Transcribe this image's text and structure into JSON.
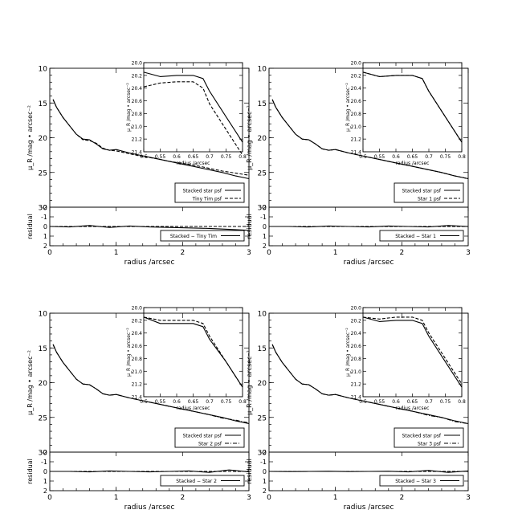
{
  "chart_data": [
    {
      "type": "line",
      "panel": "top-left",
      "ylabel": "μ_R /mag • arcsec⁻²",
      "xlabel": "radius /arcsec",
      "xlim": [
        0,
        3
      ],
      "ylim": [
        30,
        10
      ],
      "xticks": [
        "0",
        "1",
        "2",
        "3"
      ],
      "yticks": [
        "10",
        "15",
        "20",
        "25",
        "30"
      ],
      "legend": {
        "placement": "bottom-right",
        "entries": [
          "Stacked star psf",
          "Tiny Tim psf"
        ]
      },
      "series": [
        {
          "name": "Stacked star psf",
          "style": "solid",
          "x": [
            0.05,
            0.1,
            0.2,
            0.3,
            0.4,
            0.5,
            0.6,
            0.7,
            0.8,
            0.9,
            1.0,
            1.2,
            1.4,
            1.6,
            1.8,
            2.0,
            2.2,
            2.4,
            2.6,
            2.8,
            3.0
          ],
          "y": [
            14.5,
            15.6,
            17.1,
            18.3,
            19.5,
            20.2,
            20.3,
            20.9,
            21.6,
            21.8,
            21.7,
            22.2,
            22.6,
            23.0,
            23.4,
            23.8,
            24.2,
            24.6,
            25.0,
            25.5,
            25.9
          ]
        },
        {
          "name": "Tiny Tim psf",
          "style": "dashed",
          "x": [
            0.05,
            0.1,
            0.2,
            0.3,
            0.4,
            0.5,
            0.6,
            0.7,
            0.8,
            0.9,
            1.0,
            1.2,
            1.4,
            1.6,
            1.8,
            2.0,
            2.2,
            2.4,
            2.6,
            2.8,
            3.0
          ],
          "y": [
            14.5,
            15.6,
            17.1,
            18.3,
            19.5,
            20.3,
            20.4,
            20.8,
            21.5,
            21.8,
            21.9,
            22.3,
            22.7,
            23.0,
            23.4,
            23.7,
            24.0,
            24.4,
            24.8,
            25.1,
            25.4
          ]
        }
      ],
      "residual": {
        "ylabel": "residual",
        "ylim": [
          2,
          -2
        ],
        "yticks": [
          "-2",
          "-1",
          "0",
          "1",
          "2"
        ],
        "legend": "Stacked − Tiny Tim",
        "x": [
          0,
          0.3,
          0.6,
          0.9,
          1.2,
          1.5,
          1.8,
          2.1,
          2.4,
          2.7,
          3.0
        ],
        "y": [
          0,
          0.05,
          -0.1,
          0.1,
          -0.05,
          0.05,
          0.1,
          0.15,
          0.2,
          0.3,
          0.4
        ]
      },
      "inset": {
        "ylabel": "μ_R /mag • arcsec⁻²",
        "xlabel": "radius /arcsec",
        "xlim": [
          0.5,
          0.8
        ],
        "ylim": [
          21.4,
          20.0
        ],
        "xticks": [
          "0.5",
          "0.55",
          "0.6",
          "0.65",
          "0.7",
          "0.75",
          "0.8"
        ],
        "yticks": [
          "20.0",
          "20.2",
          "20.4",
          "20.6",
          "20.8",
          "21.0",
          "21.2",
          "21.4"
        ],
        "series": [
          {
            "style": "solid",
            "x": [
              0.5,
              0.55,
              0.6,
              0.65,
              0.68,
              0.7,
              0.75,
              0.8
            ],
            "y": [
              20.15,
              20.22,
              20.2,
              20.2,
              20.25,
              20.45,
              20.85,
              21.25
            ]
          },
          {
            "style": "dashed",
            "x": [
              0.5,
              0.55,
              0.6,
              0.65,
              0.68,
              0.7,
              0.75,
              0.8
            ],
            "y": [
              20.38,
              20.32,
              20.3,
              20.3,
              20.4,
              20.65,
              21.05,
              21.45
            ]
          }
        ]
      }
    },
    {
      "type": "line",
      "panel": "top-right",
      "ylabel": "μ_R /mag • arcsec⁻²",
      "xlabel": "radius /arcsec",
      "xlim": [
        0,
        3
      ],
      "ylim": [
        30,
        10
      ],
      "xticks": [
        "0",
        "1",
        "2",
        "3"
      ],
      "yticks": [
        "10",
        "15",
        "20",
        "25",
        "30"
      ],
      "legend": {
        "placement": "bottom-right",
        "entries": [
          "Stacked star psf",
          "Star 1 psf"
        ]
      },
      "series": [
        {
          "name": "Stacked star psf",
          "style": "solid",
          "x": [
            0.05,
            0.1,
            0.2,
            0.3,
            0.4,
            0.5,
            0.6,
            0.7,
            0.8,
            0.9,
            1.0,
            1.2,
            1.4,
            1.6,
            1.8,
            2.0,
            2.2,
            2.4,
            2.6,
            2.8,
            3.0
          ],
          "y": [
            14.5,
            15.6,
            17.1,
            18.3,
            19.5,
            20.2,
            20.3,
            20.9,
            21.6,
            21.8,
            21.7,
            22.2,
            22.6,
            23.0,
            23.4,
            23.8,
            24.2,
            24.6,
            25.0,
            25.5,
            25.9
          ]
        },
        {
          "name": "Star 1 psf",
          "style": "dashed",
          "x": [
            0.05,
            0.1,
            0.2,
            0.3,
            0.4,
            0.5,
            0.6,
            0.7,
            0.8,
            0.9,
            1.0,
            1.2,
            1.4,
            1.6,
            1.8,
            2.0,
            2.2,
            2.4,
            2.6,
            2.8,
            3.0
          ],
          "y": [
            14.5,
            15.6,
            17.1,
            18.3,
            19.5,
            20.2,
            20.3,
            20.9,
            21.6,
            21.8,
            21.7,
            22.2,
            22.6,
            23.0,
            23.4,
            23.8,
            24.2,
            24.6,
            25.0,
            25.5,
            25.9
          ]
        }
      ],
      "residual": {
        "ylabel": "residual",
        "ylim": [
          2,
          -2
        ],
        "yticks": [
          "-2",
          "-1",
          "0",
          "1",
          "2"
        ],
        "legend": "Stacked − Star 1",
        "x": [
          0,
          0.3,
          0.6,
          0.9,
          1.2,
          1.5,
          1.8,
          2.1,
          2.4,
          2.7,
          3.0
        ],
        "y": [
          0,
          0,
          0.05,
          -0.05,
          0,
          0.05,
          -0.05,
          0,
          0.05,
          -0.1,
          0
        ]
      },
      "inset": {
        "ylabel": "μ_R /mag • arcsec⁻²",
        "xlabel": "radius /arcsec",
        "xlim": [
          0.5,
          0.8
        ],
        "ylim": [
          21.4,
          20.0
        ],
        "xticks": [
          "0.5",
          "0.55",
          "0.6",
          "0.65",
          "0.7",
          "0.75",
          "0.8"
        ],
        "yticks": [
          "20.0",
          "20.2",
          "20.4",
          "20.6",
          "20.8",
          "21.0",
          "21.2",
          "21.4"
        ],
        "series": [
          {
            "style": "solid",
            "x": [
              0.5,
              0.55,
              0.6,
              0.65,
              0.68,
              0.7,
              0.75,
              0.8
            ],
            "y": [
              20.15,
              20.22,
              20.2,
              20.2,
              20.25,
              20.45,
              20.85,
              21.25
            ]
          },
          {
            "style": "dashed",
            "x": [
              0.5,
              0.55,
              0.6,
              0.65,
              0.68,
              0.7,
              0.75,
              0.8
            ],
            "y": [
              20.15,
              20.22,
              20.2,
              20.2,
              20.25,
              20.45,
              20.85,
              21.25
            ]
          }
        ]
      }
    },
    {
      "type": "line",
      "panel": "bottom-left",
      "ylabel": "μ_R /mag • arcsec⁻²",
      "xlabel": "radius /arcsec",
      "xlim": [
        0,
        3
      ],
      "ylim": [
        30,
        10
      ],
      "xticks": [
        "0",
        "1",
        "2",
        "3"
      ],
      "yticks": [
        "10",
        "15",
        "20",
        "25",
        "30"
      ],
      "legend": {
        "placement": "bottom-right",
        "entries": [
          "Stacked star psf",
          "Star 2 psf"
        ]
      },
      "series": [
        {
          "name": "Stacked star psf",
          "style": "solid",
          "x": [
            0.05,
            0.1,
            0.2,
            0.3,
            0.4,
            0.5,
            0.6,
            0.7,
            0.8,
            0.9,
            1.0,
            1.2,
            1.4,
            1.6,
            1.8,
            2.0,
            2.2,
            2.4,
            2.6,
            2.8,
            3.0
          ],
          "y": [
            14.5,
            15.6,
            17.1,
            18.3,
            19.5,
            20.2,
            20.3,
            20.9,
            21.6,
            21.8,
            21.7,
            22.2,
            22.6,
            23.0,
            23.4,
            23.8,
            24.2,
            24.6,
            25.0,
            25.5,
            25.9
          ]
        },
        {
          "name": "Star 2 psf",
          "style": "dashdot",
          "x": [
            0.05,
            0.1,
            0.2,
            0.3,
            0.4,
            0.5,
            0.6,
            0.7,
            0.8,
            0.9,
            1.0,
            1.2,
            1.4,
            1.6,
            1.8,
            2.0,
            2.2,
            2.4,
            2.6,
            2.8,
            3.0
          ],
          "y": [
            14.5,
            15.6,
            17.1,
            18.3,
            19.5,
            20.2,
            20.3,
            20.9,
            21.6,
            21.8,
            21.7,
            22.2,
            22.6,
            23.0,
            23.4,
            23.8,
            24.2,
            24.6,
            25.1,
            25.4,
            25.8
          ]
        }
      ],
      "residual": {
        "ylabel": "residual",
        "ylim": [
          2,
          -2
        ],
        "yticks": [
          "-2",
          "-1",
          "0",
          "1",
          "2"
        ],
        "legend": "Stacked − Star 2",
        "x": [
          0,
          0.3,
          0.6,
          0.9,
          1.2,
          1.5,
          1.8,
          2.1,
          2.4,
          2.7,
          3.0
        ],
        "y": [
          0,
          0,
          0.05,
          -0.05,
          0,
          0.05,
          0,
          -0.05,
          0.1,
          -0.15,
          0.05
        ]
      },
      "inset": {
        "ylabel": "μ_R /mag • arcsec⁻²",
        "xlabel": "radius /arcsec",
        "xlim": [
          0.5,
          0.8
        ],
        "ylim": [
          21.4,
          20.0
        ],
        "xticks": [
          "0.5",
          "0.55",
          "0.6",
          "0.65",
          "0.7",
          "0.75",
          "0.8"
        ],
        "yticks": [
          "20.0",
          "20.2",
          "20.4",
          "20.6",
          "20.8",
          "21.0",
          "21.2",
          "21.4"
        ],
        "series": [
          {
            "style": "solid",
            "x": [
              0.5,
              0.55,
              0.6,
              0.65,
              0.68,
              0.7,
              0.75,
              0.8
            ],
            "y": [
              20.15,
              20.25,
              20.25,
              20.25,
              20.3,
              20.5,
              20.85,
              21.25
            ]
          },
          {
            "style": "dashed",
            "x": [
              0.5,
              0.55,
              0.6,
              0.65,
              0.68,
              0.7,
              0.75,
              0.8
            ],
            "y": [
              20.15,
              20.2,
              20.2,
              20.2,
              20.25,
              20.45,
              20.85,
              21.25
            ]
          }
        ]
      }
    },
    {
      "type": "line",
      "panel": "bottom-right",
      "ylabel": "μ_R /mag • arcsec⁻²",
      "xlabel": "radius /arcsec",
      "xlim": [
        0,
        3
      ],
      "ylim": [
        30,
        10
      ],
      "xticks": [
        "0",
        "1",
        "2",
        "3"
      ],
      "yticks": [
        "10",
        "15",
        "20",
        "25",
        "30"
      ],
      "legend": {
        "placement": "bottom-right",
        "entries": [
          "Stacked star psf",
          "Star 3 psf"
        ]
      },
      "series": [
        {
          "name": "Stacked star psf",
          "style": "solid",
          "x": [
            0.05,
            0.1,
            0.2,
            0.3,
            0.4,
            0.5,
            0.6,
            0.7,
            0.8,
            0.9,
            1.0,
            1.2,
            1.4,
            1.6,
            1.8,
            2.0,
            2.2,
            2.4,
            2.6,
            2.8,
            3.0
          ],
          "y": [
            14.5,
            15.6,
            17.1,
            18.3,
            19.5,
            20.2,
            20.3,
            20.9,
            21.6,
            21.8,
            21.7,
            22.2,
            22.6,
            23.0,
            23.4,
            23.8,
            24.2,
            24.6,
            25.0,
            25.5,
            25.9
          ]
        },
        {
          "name": "Star 3 psf",
          "style": "dashdot",
          "x": [
            0.05,
            0.1,
            0.2,
            0.3,
            0.4,
            0.5,
            0.6,
            0.7,
            0.8,
            0.9,
            1.0,
            1.2,
            1.4,
            1.6,
            1.8,
            2.0,
            2.2,
            2.4,
            2.6,
            2.8,
            3.0
          ],
          "y": [
            14.5,
            15.6,
            17.1,
            18.3,
            19.5,
            20.2,
            20.3,
            20.9,
            21.6,
            21.8,
            21.7,
            22.2,
            22.6,
            23.0,
            23.4,
            23.8,
            24.2,
            24.7,
            25.0,
            25.6,
            25.9
          ]
        }
      ],
      "residual": {
        "ylabel": "residual",
        "ylim": [
          2,
          -2
        ],
        "yticks": [
          "-2",
          "-1",
          "0",
          "1",
          "2"
        ],
        "legend": "Stacked − Star 3",
        "x": [
          0,
          0.3,
          0.6,
          0.9,
          1.2,
          1.5,
          1.8,
          2.1,
          2.4,
          2.7,
          3.0
        ],
        "y": [
          0,
          0.02,
          0,
          -0.02,
          0.02,
          0,
          -0.02,
          0.05,
          -0.1,
          0.1,
          -0.05
        ]
      },
      "inset": {
        "ylabel": "μ_R /mag • arcsec⁻²",
        "xlabel": "radius /arcsec",
        "xlim": [
          0.5,
          0.8
        ],
        "ylim": [
          21.4,
          20.0
        ],
        "xticks": [
          "0.5",
          "0.55",
          "0.6",
          "0.65",
          "0.7",
          "0.75",
          "0.8"
        ],
        "yticks": [
          "20.0",
          "20.2",
          "20.4",
          "20.6",
          "20.8",
          "21.0",
          "21.2",
          "21.4"
        ],
        "series": [
          {
            "style": "solid",
            "x": [
              0.5,
              0.55,
              0.6,
              0.65,
              0.68,
              0.7,
              0.75,
              0.8
            ],
            "y": [
              20.15,
              20.22,
              20.2,
              20.2,
              20.25,
              20.45,
              20.85,
              21.25
            ]
          },
          {
            "style": "dashed",
            "x": [
              0.5,
              0.55,
              0.6,
              0.65,
              0.68,
              0.7,
              0.75,
              0.8
            ],
            "y": [
              20.15,
              20.18,
              20.15,
              20.15,
              20.2,
              20.4,
              20.8,
              21.2
            ]
          }
        ]
      }
    }
  ]
}
